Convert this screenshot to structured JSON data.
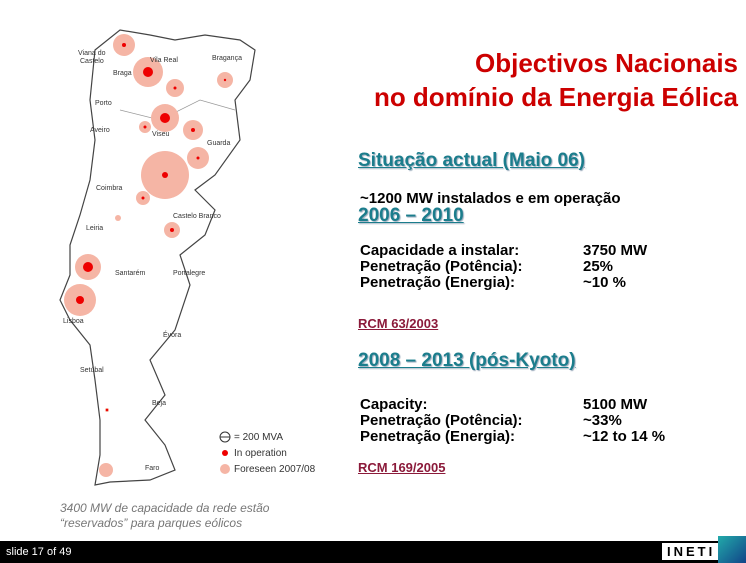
{
  "title": [
    "Objectivos Nacionais",
    "no domínio da Energia Eólica"
  ],
  "sections": [
    {
      "heading": "Situação actual (Maio 06)",
      "text": "~1200 MW instalados e em operação"
    },
    {
      "heading": "2006 – 2010",
      "rows": [
        [
          "Capacidade a instalar:",
          "3750 MW"
        ],
        [
          "Penetração (Potência):",
          "25%"
        ],
        [
          "Penetração (Energia):",
          "~10 %"
        ]
      ],
      "link": "RCM 63/2003"
    },
    {
      "heading": "2008 – 2013 (pós-Kyoto)",
      "rows": [
        [
          "Capacity:",
          "5100 MW"
        ],
        [
          "Penetração (Potência):",
          "~33%"
        ],
        [
          "Penetração (Energia):",
          "~12 to 14 %"
        ]
      ],
      "link": "RCM 169/2005"
    }
  ],
  "map": {
    "places": [
      "Viana do",
      "Castelo",
      "Vila Real",
      "Bragança",
      "Braga",
      "Porto",
      "Aveiro",
      "Viseu",
      "Guarda",
      "Coimbra",
      "Castelo Branco",
      "Leiria",
      "Santarém",
      "Portalegre",
      "Lisboa",
      "Évora",
      "Setúbal",
      "Beja",
      "Faro"
    ],
    "legend": [
      "= 200 MVA",
      "In operation",
      "Foreseen 2007/08"
    ]
  },
  "caption": [
    "3400 MW de capacidade da rede estão",
    "“reservados” para parques eólicos"
  ],
  "footer": {
    "slide": "slide 17 of 49",
    "logo": "INETI"
  }
}
